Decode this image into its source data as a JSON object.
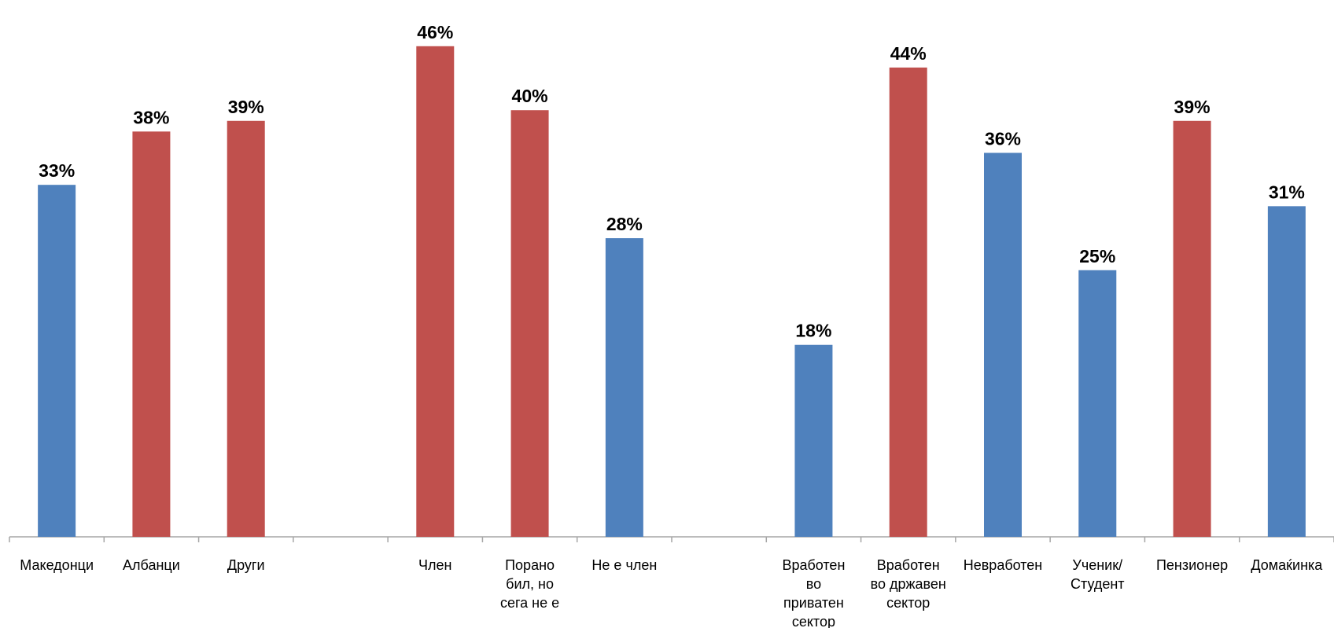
{
  "chart_data": {
    "type": "bar",
    "title": "",
    "xlabel": "",
    "ylabel": "",
    "ylim": [
      0,
      46.5
    ],
    "grid": false,
    "colors": {
      "blue": "#4F81BD",
      "red": "#C0504D"
    },
    "categories": [
      {
        "label": [
          "Македонци"
        ],
        "value": 33,
        "value_label": "33%",
        "color": "blue"
      },
      {
        "label": [
          "Албанци"
        ],
        "value": 38,
        "value_label": "38%",
        "color": "red"
      },
      {
        "label": [
          "Други"
        ],
        "value": 39,
        "value_label": "39%",
        "color": "red"
      },
      {
        "label": [],
        "value": null,
        "value_label": "",
        "color": ""
      },
      {
        "label": [
          "Член"
        ],
        "value": 46,
        "value_label": "46%",
        "color": "red"
      },
      {
        "label": [
          "Порано",
          "бил, но",
          "сега не е"
        ],
        "value": 40,
        "value_label": "40%",
        "color": "red"
      },
      {
        "label": [
          "Не е член"
        ],
        "value": 28,
        "value_label": "28%",
        "color": "blue"
      },
      {
        "label": [],
        "value": null,
        "value_label": "",
        "color": ""
      },
      {
        "label": [
          "Вработен",
          "во",
          "приватен",
          "сектор"
        ],
        "value": 18,
        "value_label": "18%",
        "color": "blue"
      },
      {
        "label": [
          "Вработен",
          "во државен",
          "сектор"
        ],
        "value": 44,
        "value_label": "44%",
        "color": "red"
      },
      {
        "label": [
          "Невработен"
        ],
        "value": 36,
        "value_label": "36%",
        "color": "blue"
      },
      {
        "label": [
          "Ученик/",
          "Студент"
        ],
        "value": 25,
        "value_label": "25%",
        "color": "blue"
      },
      {
        "label": [
          "Пензионер"
        ],
        "value": 39,
        "value_label": "39%",
        "color": "red"
      },
      {
        "label": [
          "Домаќинка"
        ],
        "value": 31,
        "value_label": "31%",
        "color": "blue"
      }
    ]
  }
}
